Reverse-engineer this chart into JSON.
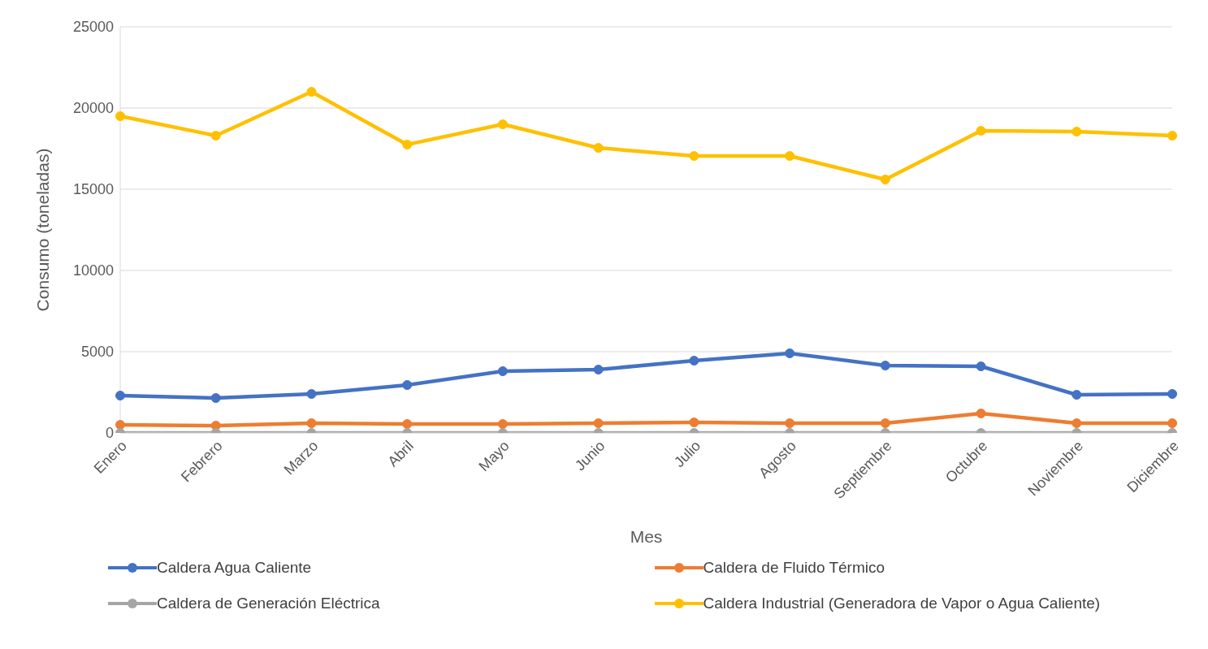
{
  "chart_data": {
    "type": "line",
    "xlabel": "Mes",
    "ylabel": "Consumo (toneladas)",
    "categories": [
      "Enero",
      "Febrero",
      "Marzo",
      "Abril",
      "Mayo",
      "Junio",
      "Julio",
      "Agosto",
      "Septiembre",
      "Octubre",
      "Noviembre",
      "Diciembre"
    ],
    "series": [
      {
        "name": "Caldera Agua Caliente",
        "color": "#4472c4",
        "values": [
          2300,
          2150,
          2400,
          2950,
          3800,
          3900,
          4450,
          4900,
          4150,
          4100,
          2350,
          2400
        ]
      },
      {
        "name": "Caldera de Fluido Térmico",
        "color": "#ed7d31",
        "values": [
          500,
          450,
          600,
          550,
          550,
          600,
          650,
          600,
          600,
          1200,
          600,
          600
        ]
      },
      {
        "name": "Caldera de Generación Eléctrica",
        "color": "#a5a5a5",
        "values": [
          0,
          0,
          0,
          0,
          0,
          0,
          0,
          0,
          0,
          0,
          0,
          0
        ]
      },
      {
        "name": "Caldera Industrial (Generadora de Vapor o Agua Caliente)",
        "color": "#ffc000",
        "values": [
          19500,
          18300,
          21000,
          17750,
          19000,
          17550,
          17050,
          17050,
          15600,
          18600,
          18550,
          18300
        ]
      }
    ],
    "ylim": [
      0,
      25000
    ],
    "yticks": [
      0,
      5000,
      10000,
      15000,
      20000,
      25000
    ],
    "grid": "y",
    "legend": "bottom",
    "marker": "circle",
    "line_style": "solid"
  }
}
